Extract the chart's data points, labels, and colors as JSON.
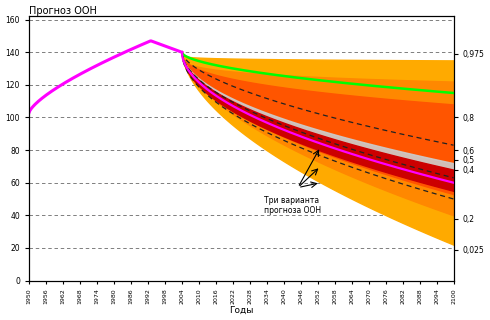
{
  "title": "Прогноз ООН",
  "xlabel": "Годы",
  "annotation_text": "Три варианта\nпрогноза ООН",
  "bg_color": "#ffffff",
  "hist_color": "#ff00ff",
  "green_color": "#00ff00",
  "magenta_future_color": "#ff00ff",
  "red_band_color": "#dd0000",
  "orange_light": "#ffaa00",
  "orange_mid": "#ff7700",
  "orange_dark": "#ff5500",
  "gray_band_color": "#bbbbbb",
  "right_tick_labels": [
    "0,975",
    "0,8",
    "0,6",
    "0,5",
    "0,4",
    "0,2",
    "0,025"
  ],
  "right_tick_values": [
    139,
    100,
    80,
    74,
    68,
    38,
    19
  ],
  "ylim": [
    0,
    162
  ],
  "xlim": [
    1950,
    2100
  ]
}
